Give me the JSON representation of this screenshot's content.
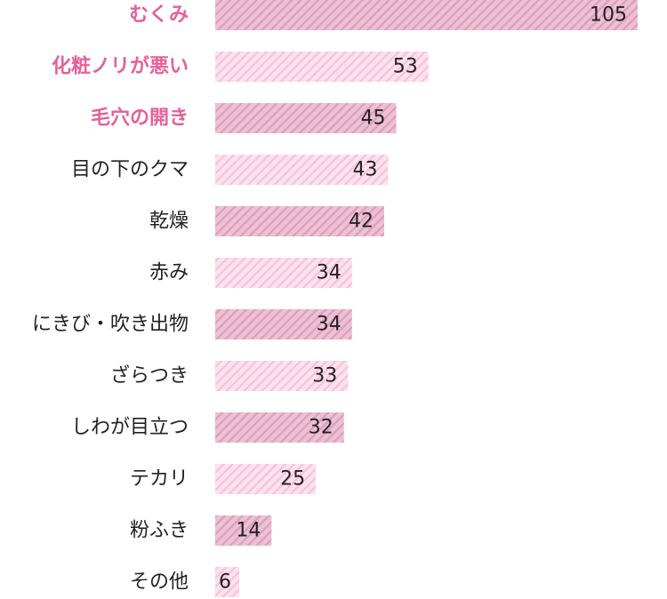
{
  "chart_data": {
    "type": "bar",
    "orientation": "horizontal",
    "categories": [
      "むくみ",
      "化粧ノリが悪い",
      "毛穴の開き",
      "目の下のクマ",
      "乾燥",
      "赤み",
      "にきび・吹き出物",
      "ざらつき",
      "しわが目立つ",
      "テカリ",
      "粉ふき",
      "その他"
    ],
    "values": [
      105,
      53,
      45,
      43,
      42,
      34,
      34,
      33,
      32,
      25,
      14,
      6
    ],
    "highlighted_categories": [
      "むくみ",
      "化粧ノリが悪い",
      "毛穴の開き"
    ],
    "xlim": [
      0,
      105
    ],
    "grid": false,
    "legend": "none",
    "colors": {
      "bar_dark_fill": "#ecc1d4",
      "bar_dark_stripe": "#dda0bc",
      "bar_light_fill": "#fde3ee",
      "bar_light_stripe": "#f8c3d9",
      "highlight_text": "#e5609a",
      "text": "#222222"
    }
  }
}
